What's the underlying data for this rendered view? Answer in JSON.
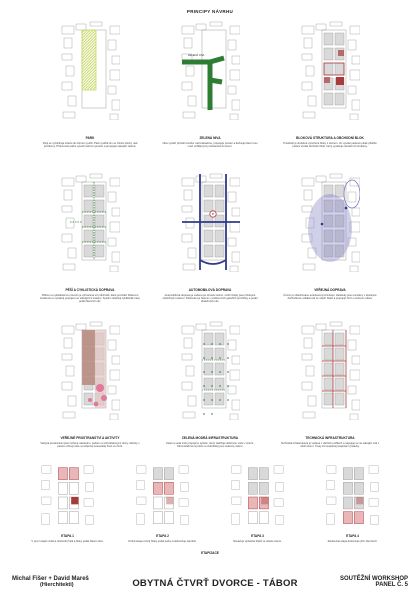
{
  "header": {
    "title": "PRINCIPY NÁVRHU"
  },
  "panels": [
    {
      "key": "p1",
      "title": "PARK",
      "text": "Park se vyzdvihuje středu do ohrnutí využití. Park využitá tím ve chrání plochy nad průzkumy. Přítomnost parku vytváří ostrovní prostor a propojuje stávající zeleně."
    },
    {
      "key": "p2",
      "title": "ZELENÁ NIVA",
      "text": "Niva vytváří přírodní koridor nad zástavbou, propojuje prostor a definuje hlavní osu mezi vzdálenými prostranstvími území."
    },
    {
      "key": "p3",
      "title": "BLOKOVÁ STRUKTURA A OBCHODNÍ BLOK",
      "text": "Prostředí je struktura vytvořené bloky s dvorem. Ve vysoké parkové ploše přilehlé poloze vzniká obchodní blok, který vyvažuje náměstí do struktury."
    },
    {
      "key": "p4",
      "title": "PĚŠÍ A CYKLISTICKÁ DOPRAVA",
      "text": "Pěšímu a cyklistickému provozu je vyhrazena síť průchodů, které prochází blokovou strukturou a vytvářejí propojení se stávajícími trasami. Systém doplňují cyklistické trasy podél hlavních ulic."
    },
    {
      "key": "p5",
      "title": "AUTOMOBILOVÁ DOPRAVA",
      "text": "Automobilová doprava je vedena po obvodu území, vnitřní bloky jsou přístupné obslužnými ulicemi. Parkování je řešeno v podzemních garážích pod bloky a podél obslužných ulic."
    },
    {
      "key": "p6",
      "title": "VEŘEJNÁ DOPRAVA",
      "text": "Území je obsluhováno autobusovými linkami. Zastávky jsou umístěny v dostupné docházkové vzdálenosti ze všech bloků a propojují čtvrť s centrem města."
    },
    {
      "key": "p7",
      "title": "VEŘEJNÉ PROSTRANSTVÍ A AKTIVITY",
      "text": "Veřejná prostranství jsou tvořena náměstím, parkem a vnitroblokovými dvory. Aktivity v parteru oživují ulice a podporují sousedský život ve čtvrti."
    },
    {
      "key": "p8",
      "title": "ZELENÁ MODRÁ INFRASTRUKTURA",
      "text": "Zeleň a voda tvoří propojený systém, který zadržuje dešťovou vodu v území. Stromořadí lemují ulice a vnitrobloky jsou osázeny zelení."
    },
    {
      "key": "p9",
      "title": "TECHNICKÁ INFRASTRUKTURA",
      "text": "Technická infrastruktura je vedena v uličních profilech a napojuje se na stávající sítě v okolí území. Trasy sítí respektují etapizaci výstavby."
    }
  ],
  "etapy": [
    {
      "title": "ETAPA 1",
      "text": "V první etapě vznikne obchodní blok a bloky podél hlavní ulice."
    },
    {
      "title": "ETAPA 2",
      "text": "Druhá etapa rozvíjí bloky podél parku a dokončuje náměstí."
    },
    {
      "title": "ETAPA 3",
      "text": "Navazuje výstavba bloků ve středu území."
    },
    {
      "title": "ETAPA 4",
      "text": "Závěrečná etapa dokončuje jižní část čtvrti."
    }
  ],
  "etapizace_label": "ETAPIZACE",
  "map_labels": {
    "p2_label": "ZELENÁ OSA"
  },
  "footer": {
    "authors": "Michal Fišer + David Mareš",
    "authors_sub": "(Hierchitekti)",
    "title": "OBYTNÁ ČTVRŤ DVORCE - TÁBOR",
    "right1": "SOUTĚŽNÍ WORKSHOP",
    "right2": "PANEL Č. 5"
  },
  "colors": {
    "building": "#d9d9d9",
    "outline": "#9a9a9a",
    "park": "#c9d96a",
    "green": "#2d7d32",
    "red": "#a83a3a",
    "blue": "#303a8a",
    "purple": "#7a79c0",
    "pink": "#e07a9b",
    "brown": "#b88c80"
  }
}
